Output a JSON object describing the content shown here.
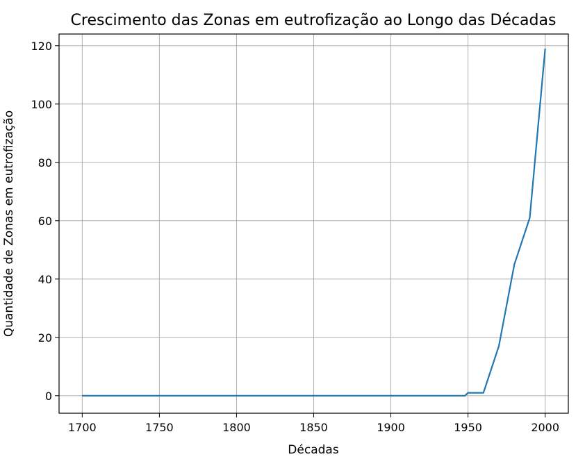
{
  "chart_data": {
    "type": "line",
    "title": "Crescimento das Zonas em eutrofização ao Longo das Décadas",
    "xlabel": "Décadas",
    "ylabel": "Quantidade de Zonas em eutrofização",
    "xlim": [
      1685,
      2015
    ],
    "ylim": [
      -6,
      124
    ],
    "xticks": [
      1700,
      1750,
      1800,
      1850,
      1900,
      1950,
      2000
    ],
    "yticks": [
      0,
      20,
      40,
      60,
      80,
      100,
      120
    ],
    "grid": true,
    "series": [
      {
        "color": "#1f77b4",
        "x": [
          1700,
          1948,
          1950,
          1960,
          1970,
          1980,
          1990,
          2000
        ],
        "y": [
          0,
          0,
          1,
          1,
          17,
          45,
          61,
          119
        ]
      }
    ]
  }
}
